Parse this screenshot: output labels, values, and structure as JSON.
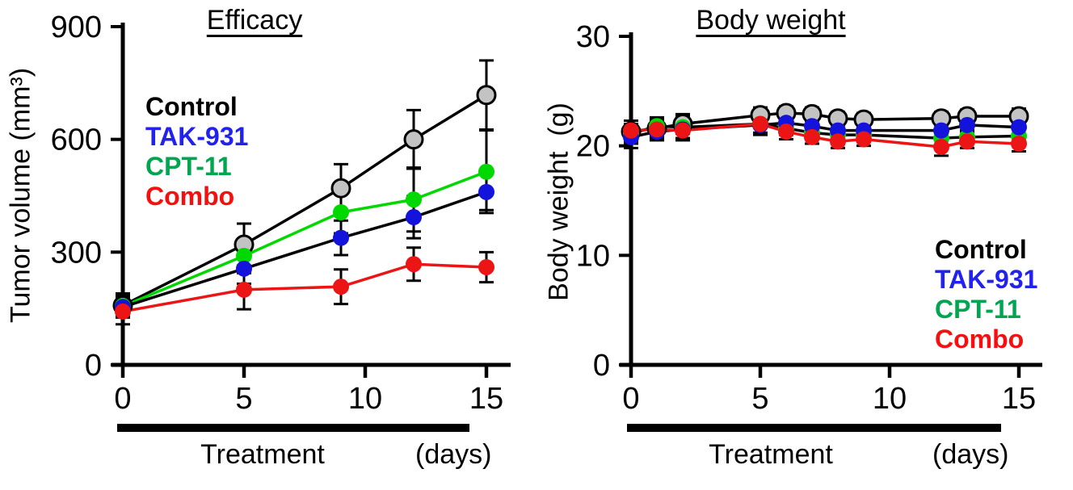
{
  "figure": {
    "background": "#ffffff",
    "axis_color": "#000000",
    "error_bar_color": "#000000"
  },
  "chart_data": [
    {
      "type": "line",
      "title": "Efficacy",
      "ylabel": "Tumor volume (mm³)",
      "xlabel": "Treatment",
      "xlabel_unit": "(days)",
      "xlim": [
        0,
        16
      ],
      "ylim": [
        0,
        900
      ],
      "xticks": [
        0,
        5,
        10,
        15
      ],
      "yticks": [
        0,
        300,
        600,
        900
      ],
      "grid": false,
      "legend_position": "inside-top-left",
      "x": [
        0,
        5,
        9,
        12,
        15
      ],
      "series": [
        {
          "name": "Control",
          "values": [
            158,
            320,
            470,
            600,
            718
          ],
          "errors": [
            32,
            56,
            64,
            78,
            92
          ],
          "marker_fill": "#c3c3c3",
          "marker_stroke": "#000000",
          "line_color": "#000000"
        },
        {
          "name": "CPT-11",
          "values": [
            156,
            290,
            406,
            440,
            514
          ],
          "errors": [
            28,
            46,
            56,
            85,
            110
          ],
          "marker_fill": "#00d800",
          "marker_stroke": null,
          "line_color": "#00d800"
        },
        {
          "name": "TAK-931",
          "values": [
            154,
            256,
            338,
            393,
            460
          ],
          "errors": [
            26,
            40,
            46,
            56,
            48
          ],
          "marker_fill": "#1313dc",
          "marker_stroke": null,
          "line_color": "#000000"
        },
        {
          "name": "Combo",
          "values": [
            142,
            200,
            208,
            268,
            260
          ],
          "errors": [
            34,
            52,
            46,
            44,
            40
          ],
          "marker_fill": "#ec1515",
          "marker_stroke": null,
          "line_color": "#ec1515"
        }
      ],
      "legend": [
        {
          "name": "Control",
          "color": "#000000"
        },
        {
          "name": "TAK-931",
          "color": "#2222ee"
        },
        {
          "name": "CPT-11",
          "color": "#00a550"
        },
        {
          "name": "Combo",
          "color": "#f50f0f"
        }
      ]
    },
    {
      "type": "line",
      "title": "Body weight",
      "ylabel": "Body weight  (g)",
      "xlabel": "Treatment",
      "xlabel_unit": "(days)",
      "xlim": [
        0,
        16
      ],
      "ylim": [
        0,
        30
      ],
      "xticks": [
        0,
        5,
        10,
        15
      ],
      "yticks": [
        0,
        10,
        20,
        30
      ],
      "grid": false,
      "legend_position": "inside-bottom-right",
      "x": [
        0,
        1,
        2,
        5,
        6,
        7,
        8,
        9,
        12,
        13,
        15
      ],
      "series": [
        {
          "name": "Control",
          "values": [
            21.3,
            21.6,
            22.0,
            22.8,
            23.0,
            22.9,
            22.5,
            22.4,
            22.5,
            22.7,
            22.7
          ],
          "errors": [
            1.0,
            0.8,
            0.9,
            0.7,
            0.6,
            0.6,
            0.6,
            0.6,
            0.6,
            0.6,
            0.7
          ],
          "marker_fill": "#c3c3c3",
          "marker_stroke": "#000000",
          "line_color": "#000000"
        },
        {
          "name": "CPT-11",
          "values": [
            21.1,
            21.8,
            21.7,
            22.0,
            21.6,
            21.2,
            21.0,
            21.0,
            20.7,
            20.8,
            20.9
          ],
          "errors": [
            0.9,
            0.8,
            1.0,
            0.8,
            0.6,
            0.6,
            0.6,
            0.6,
            0.6,
            0.6,
            0.6
          ],
          "marker_fill": "#00d800",
          "marker_stroke": null,
          "line_color": "#000000"
        },
        {
          "name": "TAK-931",
          "values": [
            20.8,
            21.3,
            21.5,
            21.9,
            22.1,
            21.8,
            21.4,
            21.4,
            21.4,
            21.9,
            21.7
          ],
          "errors": [
            1.0,
            0.8,
            0.8,
            0.7,
            0.6,
            0.6,
            0.6,
            0.6,
            0.6,
            0.6,
            0.6
          ],
          "marker_fill": "#1313dc",
          "marker_stroke": null,
          "line_color": "#000000"
        },
        {
          "name": "Combo",
          "values": [
            21.4,
            21.5,
            21.4,
            22.0,
            21.3,
            20.8,
            20.4,
            20.6,
            19.9,
            20.4,
            20.2
          ],
          "errors": [
            0.9,
            0.8,
            0.9,
            1.0,
            0.7,
            0.6,
            0.6,
            0.6,
            0.8,
            0.6,
            0.7
          ],
          "marker_fill": "#ec1515",
          "marker_stroke": null,
          "line_color": "#ec1515"
        }
      ],
      "legend": [
        {
          "name": "Control",
          "color": "#000000"
        },
        {
          "name": "TAK-931",
          "color": "#2222ee"
        },
        {
          "name": "CPT-11",
          "color": "#00a550"
        },
        {
          "name": "Combo",
          "color": "#f50f0f"
        }
      ]
    }
  ]
}
